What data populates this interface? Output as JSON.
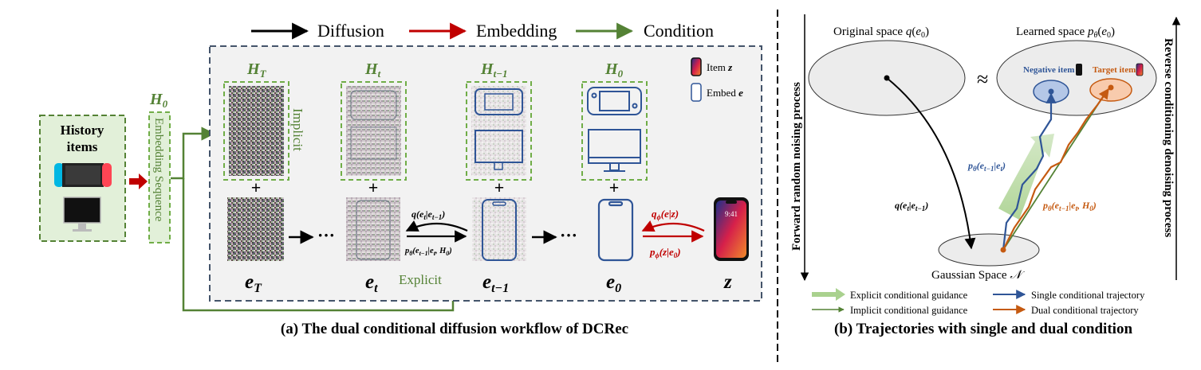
{
  "legend_top": {
    "diffusion": "Diffusion",
    "embedding": "Embedding",
    "condition": "Condition"
  },
  "history": {
    "title_line1": "History",
    "title_line2": "items"
  },
  "embedding_sequence": {
    "label": "Embedding Sequence",
    "h0": "H",
    "h0_sub": "0"
  },
  "workflow": {
    "h_labels": [
      {
        "base": "H",
        "sub": "T"
      },
      {
        "base": "H",
        "sub": "t"
      },
      {
        "base": "H",
        "sub": "t−1"
      },
      {
        "base": "H",
        "sub": "0"
      }
    ],
    "e_labels": [
      {
        "base": "e",
        "sub": "T"
      },
      {
        "base": "e",
        "sub": "t"
      },
      {
        "base": "e",
        "sub": "t−1"
      },
      {
        "base": "e",
        "sub": "0"
      }
    ],
    "z_label": "z",
    "implicit": "Implicit",
    "explicit": "Explicit",
    "plus": "+",
    "dots": "···",
    "q_forward": "q(e",
    "q_forward_full": "q(e_t|e_{t−1})",
    "p_reverse_full": "p_θ(e_{t−1}|e_t,H_0)",
    "q_phi_full": "q_ϕ(e|z)",
    "p_phi_full": "p_ϕ(z|e_0)",
    "item_legend": "Item",
    "item_symbol": "z",
    "embed_legend": "Embed",
    "embed_symbol": "e",
    "phone_time": "9:41"
  },
  "caption_a": "(a) The dual conditional diffusion workflow of DCRec",
  "caption_b": "(b) Trajectories with single and dual condition",
  "panel_b": {
    "original_space": "Original space",
    "learned_space": "Learned space",
    "approx": "≈",
    "negative_item": "Negative item",
    "target_item": "Target item",
    "gaussian_space": "Gaussian Space",
    "forward_axis": "Forward random noising process",
    "reverse_axis": "Reverse conditioning denoising process",
    "q_label": "q(e_t|e_{t−1})",
    "p_single": "p_θ(e_{t−1}|e_t)",
    "p_dual": "p_θ(e_{t−1}|e_t, H_0)",
    "legend": [
      {
        "label": "Explicit conditional guidance",
        "color": "#a9d18e"
      },
      {
        "label": "Single conditional trajectory",
        "color": "#2f5597"
      },
      {
        "label": "Implicit conditional guidance",
        "color": "#548235"
      },
      {
        "label": "Dual conditional trajectory",
        "color": "#c55a11"
      }
    ]
  },
  "colors": {
    "diffusion": "#000000",
    "embedding": "#c00000",
    "condition": "#548235",
    "dashed_green": "#70ad47",
    "blue_outline": "#2f5597",
    "panel_border": "#44546a"
  }
}
